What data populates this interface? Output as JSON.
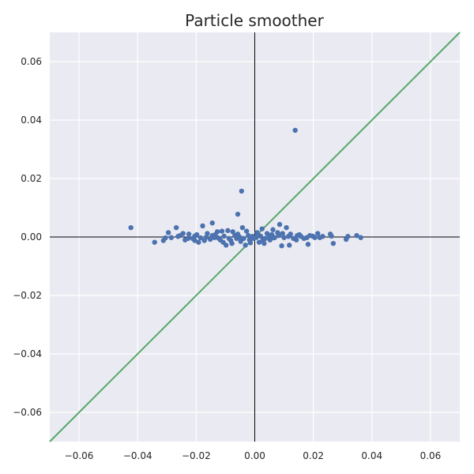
{
  "chart_data": {
    "type": "scatter",
    "title": "Particle smoother",
    "xlabel": "",
    "ylabel": "",
    "xlim": [
      -0.07,
      0.07
    ],
    "ylim": [
      -0.07,
      0.07
    ],
    "xticks": [
      -0.06,
      -0.04,
      -0.02,
      0.0,
      0.02,
      0.04,
      0.06
    ],
    "yticks": [
      -0.06,
      -0.04,
      -0.02,
      0.0,
      0.02,
      0.04,
      0.06
    ],
    "xtick_labels": [
      "−0.06",
      "−0.04",
      "−0.02",
      "0.00",
      "0.02",
      "0.04",
      "0.06"
    ],
    "ytick_labels": [
      "−0.06",
      "−0.04",
      "−0.02",
      "0.00",
      "0.02",
      "0.04",
      "0.06"
    ],
    "grid": true,
    "background_color": "#eaeaf2",
    "point_color": "#4c72b0",
    "line_color": "#55a868",
    "axis_line_color": "#000000",
    "reference_line": {
      "type": "identity",
      "x": [
        -0.07,
        0.07
      ],
      "y": [
        -0.07,
        0.07
      ]
    },
    "points": [
      [
        0.0138,
        0.0365
      ],
      [
        -0.0045,
        0.0157
      ],
      [
        -0.0058,
        0.0078
      ],
      [
        -0.0423,
        0.0032
      ],
      [
        0.0085,
        0.0043
      ],
      [
        -0.0145,
        0.0048
      ],
      [
        -0.0268,
        0.0032
      ],
      [
        -0.0178,
        0.0038
      ],
      [
        -0.0042,
        0.0032
      ],
      [
        0.0108,
        0.0032
      ],
      [
        0.0062,
        0.0025
      ],
      [
        0.0025,
        0.0028
      ],
      [
        -0.0295,
        0.0015
      ],
      [
        -0.0245,
        0.0012
      ],
      [
        -0.0225,
        0.001
      ],
      [
        -0.0198,
        0.0008
      ],
      [
        -0.0162,
        0.0012
      ],
      [
        -0.0128,
        0.0018
      ],
      [
        -0.0112,
        0.002
      ],
      [
        -0.0092,
        0.0022
      ],
      [
        -0.0075,
        0.0018
      ],
      [
        -0.0028,
        0.002
      ],
      [
        0.0008,
        0.0015
      ],
      [
        0.0042,
        0.0012
      ],
      [
        0.0078,
        0.0015
      ],
      [
        0.0122,
        0.001
      ],
      [
        0.0152,
        0.0008
      ],
      [
        0.0215,
        0.0012
      ],
      [
        0.0258,
        0.001
      ],
      [
        0.0348,
        0.0005
      ],
      [
        -0.0342,
        -0.0018
      ],
      [
        -0.0312,
        -0.0012
      ],
      [
        -0.0285,
        -0.0002
      ],
      [
        -0.0262,
        0.0002
      ],
      [
        -0.0238,
        -0.001
      ],
      [
        -0.0212,
        -0.0005
      ],
      [
        -0.0192,
        -0.0018
      ],
      [
        -0.0172,
        -0.0012
      ],
      [
        -0.0152,
        -0.0008
      ],
      [
        -0.0138,
        -0.0002
      ],
      [
        -0.0118,
        -0.001
      ],
      [
        -0.0098,
        -0.0028
      ],
      [
        -0.0082,
        -0.0012
      ],
      [
        -0.0062,
        -0.0005
      ],
      [
        -0.0048,
        -0.0015
      ],
      [
        -0.0032,
        -0.0028
      ],
      [
        -0.0018,
        -0.001
      ],
      [
        -0.0005,
        -0.0005
      ],
      [
        0.0015,
        -0.0018
      ],
      [
        0.0032,
        -0.0022
      ],
      [
        0.0052,
        -0.001
      ],
      [
        0.0068,
        -0.0002
      ],
      [
        0.0092,
        -0.003
      ],
      [
        0.0118,
        -0.0028
      ],
      [
        0.0142,
        -0.001
      ],
      [
        0.0168,
        -0.0005
      ],
      [
        0.0182,
        -0.0025
      ],
      [
        0.0205,
        -0.0002
      ],
      [
        0.0232,
        0.0002
      ],
      [
        0.0268,
        -0.0022
      ],
      [
        0.0312,
        -0.0008
      ],
      [
        0.0362,
        -0.0002
      ],
      [
        -0.0305,
        -0.0003
      ],
      [
        -0.0255,
        0.0005
      ],
      [
        -0.0228,
        -0.0005
      ],
      [
        -0.0205,
        0.0003
      ],
      [
        -0.0185,
        -0.0003
      ],
      [
        -0.0165,
        0.0
      ],
      [
        -0.0145,
        0.0005
      ],
      [
        -0.0125,
        -0.0003
      ],
      [
        -0.0105,
        0.0003
      ],
      [
        -0.0088,
        -0.0005
      ],
      [
        -0.0068,
        0.0005
      ],
      [
        -0.0052,
        0.0
      ],
      [
        -0.0038,
        -0.0005
      ],
      [
        -0.0022,
        0.0005
      ],
      [
        -0.0008,
        0.0002
      ],
      [
        0.0005,
        -0.0002
      ],
      [
        0.002,
        0.0003
      ],
      [
        0.0036,
        -0.0005
      ],
      [
        0.005,
        0.0002
      ],
      [
        0.0065,
        -0.0003
      ],
      [
        0.0082,
        0.0005
      ],
      [
        0.01,
        -0.0002
      ],
      [
        0.0115,
        0.0002
      ],
      [
        0.0132,
        -0.0005
      ],
      [
        0.0158,
        0.0002
      ],
      [
        0.0178,
        -0.0002
      ],
      [
        0.0198,
        0.0003
      ],
      [
        0.0222,
        -0.0002
      ],
      [
        0.0262,
        0.0003
      ],
      [
        0.0318,
        0.0002
      ],
      [
        -0.0108,
        -0.0018
      ],
      [
        -0.0078,
        -0.0022
      ],
      [
        -0.0015,
        -0.002
      ],
      [
        0.0012,
        0.0008
      ],
      [
        0.0028,
        -0.001
      ],
      [
        0.0058,
        0.0008
      ],
      [
        0.0095,
        0.0012
      ],
      [
        -0.0058,
        0.001
      ],
      [
        -0.0135,
        0.0008
      ],
      [
        -0.0205,
        -0.0012
      ],
      [
        0.0188,
        0.0005
      ],
      [
        0.0145,
        0.0005
      ]
    ]
  }
}
